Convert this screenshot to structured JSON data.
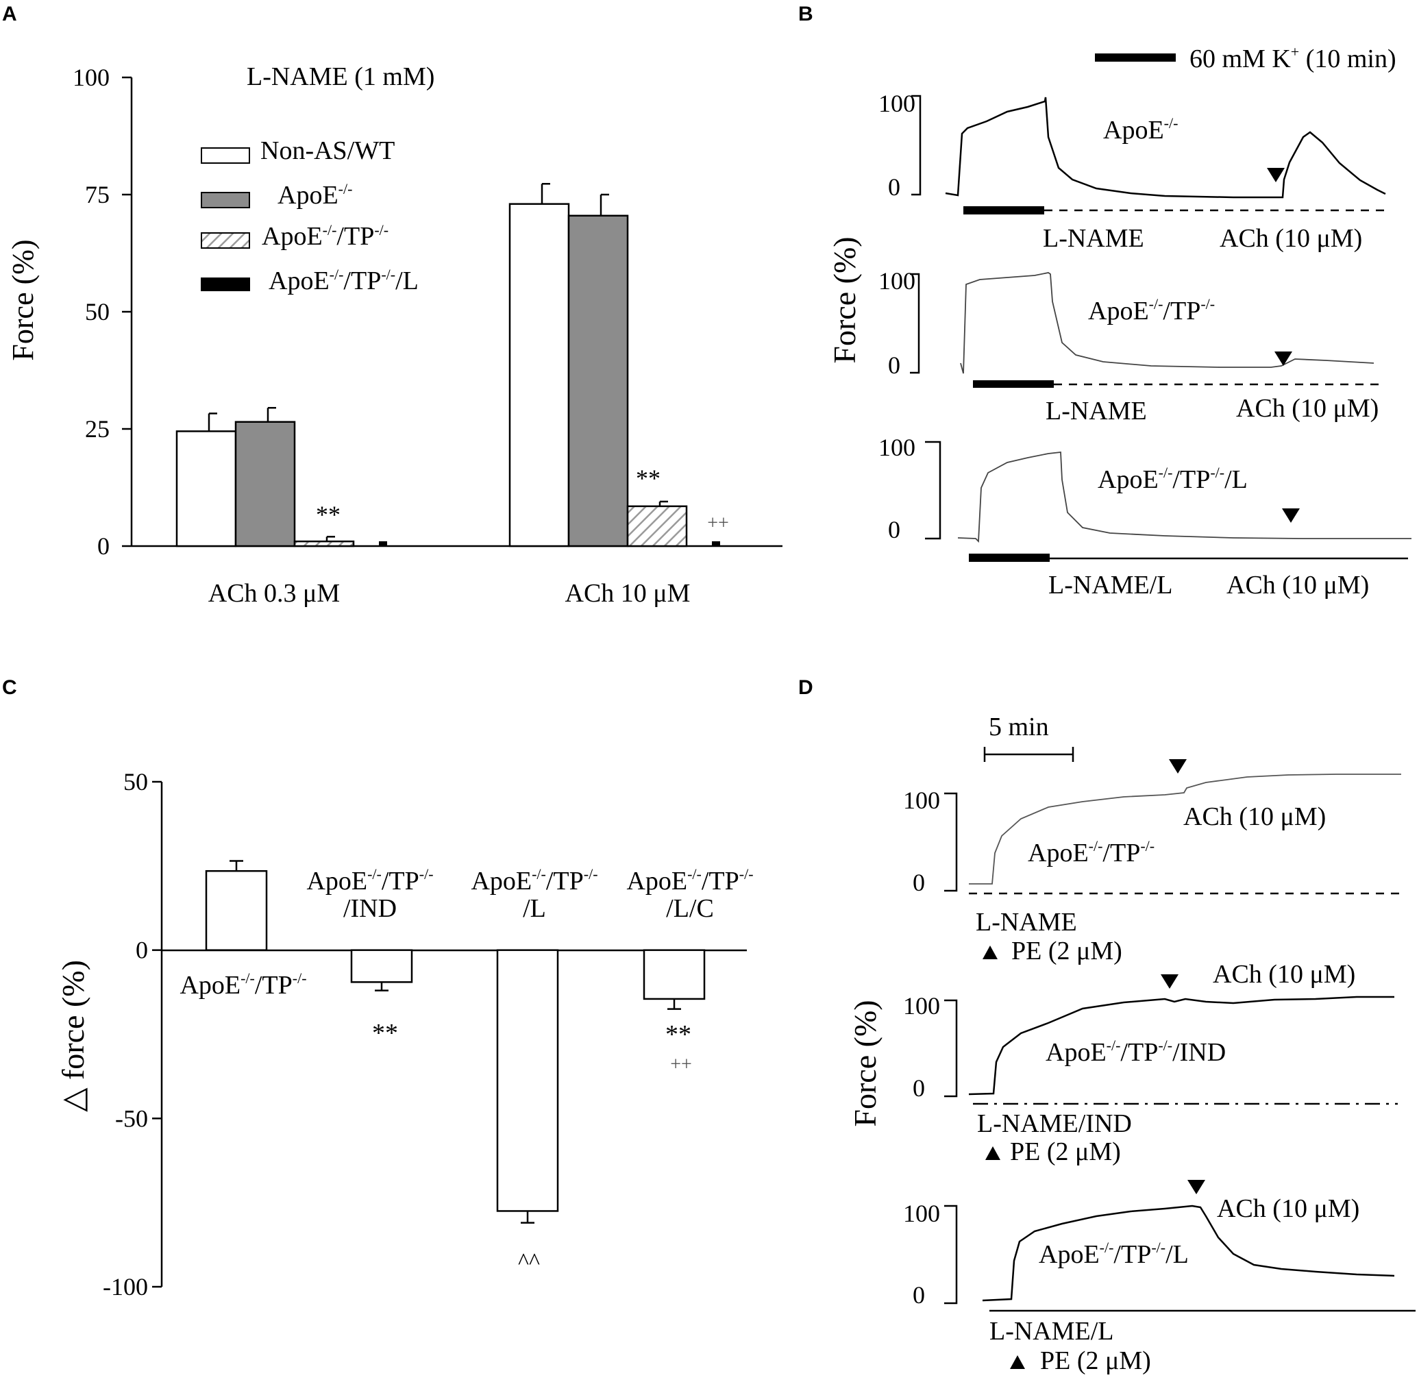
{
  "panels": {
    "A": "A",
    "B": "B",
    "C": "C",
    "D": "D"
  },
  "chart_data": [
    {
      "panel": "A",
      "type": "bar",
      "title": "L-NAME (1 mM)",
      "ylabel": "Force (%)",
      "ylim": [
        0,
        100
      ],
      "yticks": [
        "0",
        "25",
        "50",
        "75",
        "100"
      ],
      "categories": [
        "ACh 0.3 μM",
        "ACh 10 μM"
      ],
      "legend_position": "top-left",
      "series": [
        {
          "name": "Non-AS/WT",
          "fill": "#ffffff",
          "pattern": "none",
          "values": [
            24.5,
            73
          ],
          "errors": [
            3.8,
            4.3
          ]
        },
        {
          "name": "ApoE⁻/⁻",
          "fill": "#8c8c8c",
          "pattern": "none",
          "values": [
            26.5,
            70.5
          ],
          "errors": [
            3.0,
            4.5
          ]
        },
        {
          "name": "ApoE⁻/⁻/TP⁻/⁻",
          "fill": "#ffffff",
          "pattern": "hatch",
          "values": [
            1.0,
            8.5
          ],
          "errors": [
            1.0,
            1.0
          ]
        },
        {
          "name": "ApoE⁻/⁻/TP⁻/⁻/L",
          "fill": "#000000",
          "pattern": "none",
          "values": [
            0.3,
            0.3
          ],
          "errors": [
            0,
            0
          ]
        }
      ],
      "legend": [
        {
          "main": "Non-AS/WT",
          "sup1": "",
          "mid": "",
          "sup2": "",
          "tail": ""
        },
        {
          "main": "ApoE",
          "sup1": "-/-",
          "mid": "",
          "sup2": "",
          "tail": ""
        },
        {
          "main": "ApoE",
          "sup1": "-/-",
          "mid": "/TP",
          "sup2": "-/-",
          "tail": ""
        },
        {
          "main": "ApoE",
          "sup1": "-/-",
          "mid": "/TP",
          "sup2": "-/-",
          "tail": "/L"
        }
      ],
      "annotations": {
        "sig_03": "**",
        "sig_10": "**",
        "plus_10": "++"
      }
    },
    {
      "panel": "B",
      "type": "line",
      "ylabel": "Force (%)",
      "scale_bar": {
        "label_main": "60 mM K",
        "label_sup": "+",
        "label_tail": " (10 min)"
      },
      "traces": [
        {
          "label_main": "ApoE",
          "label_sup": "-/-",
          "label_mid": "",
          "label_sup2": "",
          "label_tail": "",
          "ymax": "100",
          "ymin": "0",
          "treatment": "L-NAME",
          "ach": "ACh (10 μM)",
          "line_style": "dashed"
        },
        {
          "label_main": "ApoE",
          "label_sup": "-/-",
          "label_mid": "/TP",
          "label_sup2": "-/-",
          "label_tail": "",
          "ymax": "100",
          "ymin": "0",
          "treatment": "L-NAME",
          "ach": "ACh (10 μM)",
          "line_style": "dashed"
        },
        {
          "label_main": "ApoE",
          "label_sup": "-/-",
          "label_mid": "/TP",
          "label_sup2": "-/-",
          "label_tail": "/L",
          "ymax": "100",
          "ymin": "0",
          "treatment": "L-NAME/L",
          "ach": "ACh (10 μM)",
          "line_style": "solid"
        }
      ]
    },
    {
      "panel": "C",
      "type": "bar",
      "ylabel": "△ force (%)",
      "ylim": [
        -100,
        50
      ],
      "yticks": [
        "50",
        "0",
        "-50",
        "-100"
      ],
      "categories": [
        {
          "l1_main": "ApoE",
          "l1_s1": "-/-",
          "l1_mid": "/TP",
          "l1_s2": "-/-",
          "l1_tail": "",
          "l2": ""
        },
        {
          "l1_main": "ApoE",
          "l1_s1": "-/-",
          "l1_mid": "/TP",
          "l1_s2": "-/-",
          "l1_tail": "",
          "l2": "/IND"
        },
        {
          "l1_main": "ApoE",
          "l1_s1": "-/-",
          "l1_mid": "/TP",
          "l1_s2": "-/-",
          "l1_tail": "",
          "l2": "/L"
        },
        {
          "l1_main": "ApoE",
          "l1_s1": "-/-",
          "l1_mid": "/TP",
          "l1_s2": "-/-",
          "l1_tail": "",
          "l2": "/L/C"
        }
      ],
      "values": [
        23.5,
        -9.5,
        -77.5,
        -14.5
      ],
      "errors": [
        3.0,
        2.5,
        3.5,
        3.0
      ],
      "annotations": {
        "sig_1": "**",
        "sig_2": "^^",
        "sig_3": "**",
        "plus_3": "++"
      }
    },
    {
      "panel": "D",
      "type": "line",
      "ylabel": "Force (%)",
      "time_bar": "5 min",
      "traces": [
        {
          "label_main": "ApoE",
          "label_sup": "-/-",
          "label_mid": "/TP",
          "label_sup2": "-/-",
          "label_tail": "",
          "ymax": "100",
          "ymin": "0",
          "treatment": "L-NAME",
          "pe": "PE (2 μM)",
          "ach": "ACh (10 μM)",
          "line_style": "dashed"
        },
        {
          "label_main": "ApoE",
          "label_sup": "-/-",
          "label_mid": "/TP",
          "label_sup2": "-/-",
          "label_tail": "/IND",
          "ymax": "100",
          "ymin": "0",
          "treatment": "L-NAME/IND",
          "pe": "PE (2 μM)",
          "ach": "ACh (10 μM)",
          "line_style": "dash-dot"
        },
        {
          "label_main": "ApoE",
          "label_sup": "-/-",
          "label_mid": "/TP",
          "label_sup2": "-/-",
          "label_tail": "/L",
          "ymax": "100",
          "ymin": "0",
          "treatment": "L-NAME/L",
          "pe": "PE (2 μM)",
          "ach": "ACh (10 μM)",
          "line_style": "solid"
        }
      ]
    }
  ]
}
